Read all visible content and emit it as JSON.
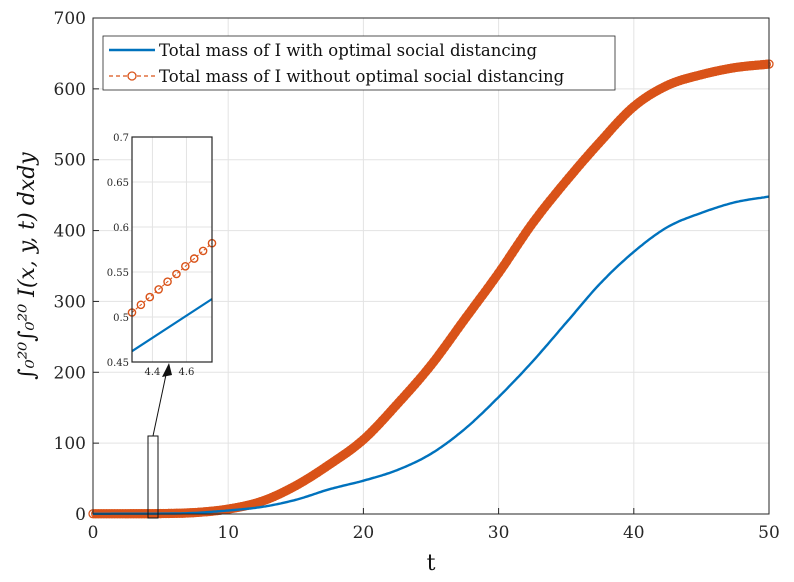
{
  "chart_data": {
    "type": "line",
    "xlabel": "t",
    "ylabel": "∫₀²⁰∫₀²⁰ I(x, y, t) dxdy",
    "xlim": [
      0,
      50
    ],
    "ylim": [
      0,
      700
    ],
    "xticks": [
      "0",
      "10",
      "20",
      "30",
      "40",
      "50"
    ],
    "yticks": [
      "0",
      "100",
      "200",
      "300",
      "400",
      "500",
      "600",
      "700"
    ],
    "grid": true,
    "legend_position": "top-left",
    "x": [
      0,
      2.5,
      5,
      7.5,
      10,
      12.5,
      15,
      17.5,
      20,
      22.5,
      25,
      27.5,
      30,
      32.5,
      35,
      37.5,
      40,
      42.5,
      45,
      47.5,
      50
    ],
    "series": [
      {
        "name": "Total mass of I with optimal social distancing",
        "color": "#0072BD",
        "style": "solid",
        "values": [
          0.3,
          0.4,
          0.5,
          1.5,
          5,
          10,
          20,
          35,
          47,
          62,
          85,
          120,
          165,
          215,
          270,
          325,
          370,
          405,
          425,
          440,
          448
        ]
      },
      {
        "name": "Total mass of I without optimal social distancing",
        "color": "#D95319",
        "style": "dashed-circle-markers",
        "values": [
          0.3,
          0.4,
          0.6,
          2,
          7,
          18,
          40,
          70,
          105,
          155,
          210,
          275,
          340,
          410,
          470,
          525,
          575,
          605,
          620,
          630,
          635
        ]
      }
    ],
    "inset": {
      "xlim": [
        4.28,
        4.75
      ],
      "ylim": [
        0.45,
        0.7
      ],
      "xticks": [
        "4.4",
        "4.6"
      ],
      "yticks": [
        "0.45",
        "0.5",
        "0.55",
        "0.6",
        "0.65",
        "0.7"
      ],
      "x": [
        4.28,
        4.75
      ],
      "series": [
        {
          "values": [
            0.462,
            0.52
          ]
        },
        {
          "values": [
            0.505,
            0.582
          ]
        }
      ]
    }
  }
}
